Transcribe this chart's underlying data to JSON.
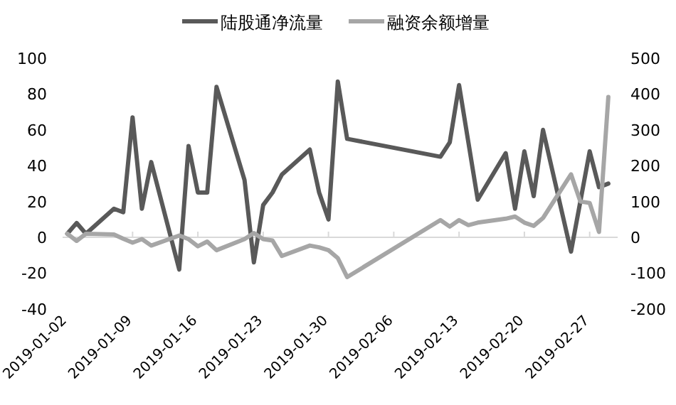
{
  "chart_data": {
    "type": "line",
    "x": [
      "2019-01-02",
      "2019-01-03",
      "2019-01-04",
      "2019-01-07",
      "2019-01-08",
      "2019-01-09",
      "2019-01-10",
      "2019-01-11",
      "2019-01-14",
      "2019-01-15",
      "2019-01-16",
      "2019-01-17",
      "2019-01-18",
      "2019-01-21",
      "2019-01-22",
      "2019-01-23",
      "2019-01-24",
      "2019-01-25",
      "2019-01-28",
      "2019-01-29",
      "2019-01-30",
      "2019-01-31",
      "2019-02-01",
      "2019-02-11",
      "2019-02-12",
      "2019-02-13",
      "2019-02-14",
      "2019-02-15",
      "2019-02-18",
      "2019-02-19",
      "2019-02-20",
      "2019-02-21",
      "2019-02-22",
      "2019-02-25",
      "2019-02-26",
      "2019-02-27",
      "2019-02-28",
      "2019-03-01"
    ],
    "series": [
      {
        "name": "陆股通净流量",
        "color": "#595959",
        "values": [
          2,
          8,
          2,
          16,
          14,
          67,
          16,
          42,
          -18,
          51,
          25,
          25,
          84,
          32,
          -14,
          18,
          25,
          35,
          49,
          25,
          10,
          87,
          55,
          45,
          53,
          85,
          53,
          21,
          47,
          16,
          48,
          23,
          60,
          -8,
          20,
          48,
          28,
          30
        ]
      },
      {
        "name": "融资余额增量",
        "color": "#a6a6a6",
        "axis": "y2",
        "values": [
          10,
          -10,
          10,
          8,
          -4,
          -15,
          -5,
          -23,
          5,
          -5,
          -25,
          -12,
          -36,
          -5,
          12,
          -5,
          -9,
          -52,
          -23,
          -28,
          -36,
          -58,
          -111,
          48,
          30,
          48,
          34,
          41,
          52,
          58,
          41,
          32,
          54,
          176,
          100,
          96,
          15,
          392
        ]
      }
    ],
    "xlim": [
      "2019-01-01T12:00",
      "2019-03-02"
    ],
    "xticks": [
      "2019-01-02",
      "2019-01-09",
      "2019-01-16",
      "2019-01-23",
      "2019-01-30",
      "2019-02-06",
      "2019-02-13",
      "2019-02-20",
      "2019-02-27"
    ],
    "ylim": [
      -40,
      100
    ],
    "yticks": [
      -40,
      -20,
      0,
      20,
      40,
      60,
      80,
      100
    ],
    "y2lim": [
      -200,
      500
    ],
    "y2ticks": [
      -200,
      -100,
      0,
      100,
      200,
      300,
      400,
      500
    ],
    "ref_lines": [
      {
        "axis": "y",
        "value": 0,
        "color": "#d9d9d9"
      }
    ],
    "legend": "top",
    "marker": "none",
    "line_style": "solid"
  }
}
